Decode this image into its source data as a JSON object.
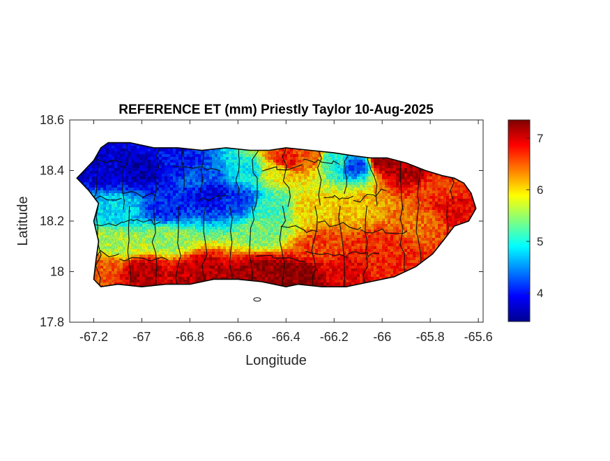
{
  "chart_data": {
    "type": "heatmap",
    "title": "REFERENCE ET (mm) Priestly Taylor 10-Aug-2025",
    "xlabel": "Longitude",
    "ylabel": "Latitude",
    "xlim": [
      -67.3,
      -65.58
    ],
    "ylim": [
      17.8,
      18.6
    ],
    "x_ticks": [
      {
        "value": -67.2,
        "label": "-67.2"
      },
      {
        "value": -67.0,
        "label": "-67"
      },
      {
        "value": -66.8,
        "label": "-66.8"
      },
      {
        "value": -66.6,
        "label": "-66.6"
      },
      {
        "value": -66.4,
        "label": "-66.4"
      },
      {
        "value": -66.2,
        "label": "-66.2"
      },
      {
        "value": -66.0,
        "label": "-66"
      },
      {
        "value": -65.8,
        "label": "-65.8"
      },
      {
        "value": -65.6,
        "label": "-65.6"
      }
    ],
    "y_ticks": [
      {
        "value": 17.8,
        "label": "17.8"
      },
      {
        "value": 18.0,
        "label": "18"
      },
      {
        "value": 18.2,
        "label": "18.2"
      },
      {
        "value": 18.4,
        "label": "18.4"
      },
      {
        "value": 18.6,
        "label": "18.6"
      }
    ],
    "grid": false,
    "colormap": "jet",
    "colorbar": {
      "range": [
        3.45,
        7.35
      ],
      "ticks": [
        {
          "value": 4,
          "label": "4"
        },
        {
          "value": 5,
          "label": "5"
        },
        {
          "value": 6,
          "label": "6"
        },
        {
          "value": 7,
          "label": "7"
        }
      ]
    },
    "island_outline": [
      [
        -67.27,
        18.37
      ],
      [
        -67.24,
        18.4
      ],
      [
        -67.2,
        18.44
      ],
      [
        -67.17,
        18.49
      ],
      [
        -67.14,
        18.51
      ],
      [
        -67.05,
        18.51
      ],
      [
        -66.95,
        18.49
      ],
      [
        -66.85,
        18.49
      ],
      [
        -66.75,
        18.48
      ],
      [
        -66.65,
        18.49
      ],
      [
        -66.55,
        18.48
      ],
      [
        -66.47,
        18.48
      ],
      [
        -66.4,
        18.49
      ],
      [
        -66.3,
        18.48
      ],
      [
        -66.2,
        18.47
      ],
      [
        -66.13,
        18.46
      ],
      [
        -66.05,
        18.45
      ],
      [
        -65.98,
        18.45
      ],
      [
        -65.9,
        18.43
      ],
      [
        -65.82,
        18.4
      ],
      [
        -65.75,
        18.38
      ],
      [
        -65.7,
        18.37
      ],
      [
        -65.66,
        18.35
      ],
      [
        -65.63,
        18.31
      ],
      [
        -65.61,
        18.25
      ],
      [
        -65.64,
        18.2
      ],
      [
        -65.7,
        18.18
      ],
      [
        -65.74,
        18.13
      ],
      [
        -65.79,
        18.07
      ],
      [
        -65.86,
        18.02
      ],
      [
        -65.95,
        17.98
      ],
      [
        -66.05,
        17.96
      ],
      [
        -66.15,
        17.94
      ],
      [
        -66.25,
        17.94
      ],
      [
        -66.35,
        17.95
      ],
      [
        -66.4,
        17.94
      ],
      [
        -66.5,
        17.96
      ],
      [
        -66.6,
        17.97
      ],
      [
        -66.7,
        17.97
      ],
      [
        -66.8,
        17.95
      ],
      [
        -66.9,
        17.95
      ],
      [
        -67.0,
        17.94
      ],
      [
        -67.1,
        17.95
      ],
      [
        -67.17,
        17.94
      ],
      [
        -67.2,
        17.97
      ],
      [
        -67.19,
        18.05
      ],
      [
        -67.18,
        18.12
      ],
      [
        -67.2,
        18.2
      ],
      [
        -67.18,
        18.27
      ],
      [
        -67.22,
        18.32
      ],
      [
        -67.27,
        18.37
      ]
    ],
    "et_field_samples": [
      {
        "lon": -67.15,
        "lat": 18.4,
        "et": 3.8
      },
      {
        "lon": -67.0,
        "lat": 18.4,
        "et": 3.7
      },
      {
        "lon": -66.85,
        "lat": 18.43,
        "et": 4.0
      },
      {
        "lon": -66.75,
        "lat": 18.38,
        "et": 4.3
      },
      {
        "lon": -66.7,
        "lat": 18.3,
        "et": 3.9
      },
      {
        "lon": -66.6,
        "lat": 18.28,
        "et": 4.2
      },
      {
        "lon": -66.9,
        "lat": 18.25,
        "et": 4.1
      },
      {
        "lon": -67.1,
        "lat": 18.25,
        "et": 4.8
      },
      {
        "lon": -66.55,
        "lat": 18.4,
        "et": 4.9
      },
      {
        "lon": -66.45,
        "lat": 18.4,
        "et": 5.9
      },
      {
        "lon": -66.4,
        "lat": 18.44,
        "et": 6.8
      },
      {
        "lon": -66.3,
        "lat": 18.45,
        "et": 6.5
      },
      {
        "lon": -66.2,
        "lat": 18.44,
        "et": 5.0
      },
      {
        "lon": -66.1,
        "lat": 18.42,
        "et": 4.2
      },
      {
        "lon": -66.0,
        "lat": 18.43,
        "et": 7.2
      },
      {
        "lon": -65.9,
        "lat": 18.4,
        "et": 7.1
      },
      {
        "lon": -65.75,
        "lat": 18.33,
        "et": 6.6
      },
      {
        "lon": -65.7,
        "lat": 18.25,
        "et": 6.9
      },
      {
        "lon": -65.85,
        "lat": 18.2,
        "et": 6.4
      },
      {
        "lon": -66.1,
        "lat": 18.25,
        "et": 6.1
      },
      {
        "lon": -66.3,
        "lat": 18.25,
        "et": 6.0
      },
      {
        "lon": -66.45,
        "lat": 18.25,
        "et": 5.2
      },
      {
        "lon": -66.5,
        "lat": 18.15,
        "et": 5.4
      },
      {
        "lon": -66.9,
        "lat": 18.13,
        "et": 5.5
      },
      {
        "lon": -67.1,
        "lat": 18.1,
        "et": 5.6
      },
      {
        "lon": -67.15,
        "lat": 18.02,
        "et": 6.5
      },
      {
        "lon": -67.0,
        "lat": 18.0,
        "et": 7.1
      },
      {
        "lon": -66.75,
        "lat": 18.0,
        "et": 7.1
      },
      {
        "lon": -66.5,
        "lat": 18.0,
        "et": 7.2
      },
      {
        "lon": -66.35,
        "lat": 17.98,
        "et": 7.3
      },
      {
        "lon": -66.15,
        "lat": 18.0,
        "et": 6.9
      },
      {
        "lon": -65.95,
        "lat": 18.02,
        "et": 6.7
      },
      {
        "lon": -66.0,
        "lat": 18.1,
        "et": 6.7
      },
      {
        "lon": -66.25,
        "lat": 18.1,
        "et": 6.6
      }
    ]
  }
}
